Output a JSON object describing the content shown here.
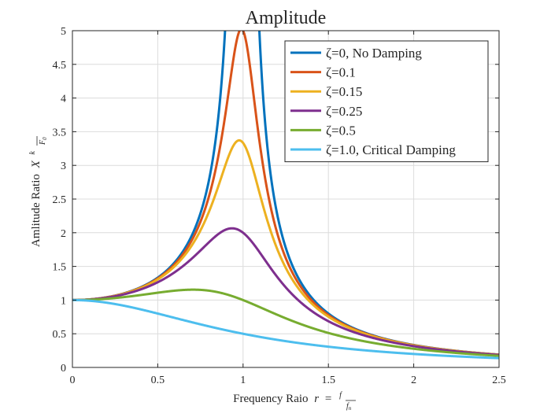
{
  "chart_data": {
    "type": "line",
    "title": "Amplitude",
    "xlabel": {
      "text": "Frequency Raio",
      "var": "r",
      "eq": "=",
      "frac_num": "f",
      "frac_den": "f",
      "frac_den_sub": "n"
    },
    "ylabel": {
      "text": "Amlitude Ratio",
      "var": "X",
      "frac_num": "k",
      "frac_den": "F",
      "frac_den_sub": "0"
    },
    "xlim": [
      0,
      2.5
    ],
    "ylim": [
      0,
      5
    ],
    "xticks": [
      "0",
      "0.5",
      "1",
      "1.5",
      "2",
      "2.5"
    ],
    "yticks": [
      "0",
      "0.5",
      "1",
      "1.5",
      "2",
      "2.5",
      "3",
      "3.5",
      "4",
      "4.5",
      "5"
    ],
    "grid": true,
    "legend_position": "top-right",
    "series": [
      {
        "name": "ζ=0, No Damping",
        "zeta": 0,
        "color": "#0072BD"
      },
      {
        "name": "ζ=0.1",
        "zeta": 0.1,
        "color": "#D95319"
      },
      {
        "name": "ζ=0.15",
        "zeta": 0.15,
        "color": "#EDB120"
      },
      {
        "name": "ζ=0.25",
        "zeta": 0.25,
        "color": "#7E2F8E"
      },
      {
        "name": "ζ=0.5",
        "zeta": 0.5,
        "color": "#77AC30"
      },
      {
        "name": "ζ=1.0, Critical Damping",
        "zeta": 1.0,
        "color": "#4DBEEE"
      }
    ],
    "formula": "1/sqrt((1-r^2)^2+(2*zeta*r)^2)"
  }
}
